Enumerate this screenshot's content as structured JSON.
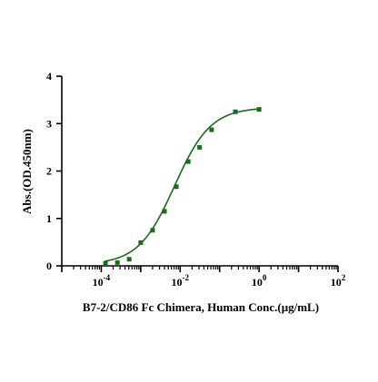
{
  "chart_data": {
    "type": "scatter",
    "xlabel": "B7-2/CD86 Fc Chimera, Human Conc.(μg/mL)",
    "ylabel": "Abs.(OD.450nm)",
    "x_scale": "log",
    "xlim": [
      1e-05,
      100
    ],
    "ylim": [
      0,
      4
    ],
    "x_ticks": [
      {
        "value": 0.0001,
        "base": "10",
        "exp": "-4"
      },
      {
        "value": 0.01,
        "base": "10",
        "exp": "-2"
      },
      {
        "value": 1,
        "base": "10",
        "exp": "0"
      },
      {
        "value": 100,
        "base": "10",
        "exp": "2"
      }
    ],
    "y_ticks": [
      {
        "value": 0,
        "label": "0"
      },
      {
        "value": 1,
        "label": "1"
      },
      {
        "value": 2,
        "label": "2"
      },
      {
        "value": 3,
        "label": "3"
      },
      {
        "value": 4,
        "label": "4"
      }
    ],
    "grid": false,
    "legend": "none",
    "series": [
      {
        "marker": "square",
        "color": "#1a6b1a",
        "points": [
          {
            "x": 0.000128,
            "y": 0.05
          },
          {
            "x": 0.000256,
            "y": 0.07
          },
          {
            "x": 0.00051,
            "y": 0.14
          },
          {
            "x": 0.001,
            "y": 0.49
          },
          {
            "x": 0.002,
            "y": 0.75
          },
          {
            "x": 0.004,
            "y": 1.15
          },
          {
            "x": 0.008,
            "y": 1.67
          },
          {
            "x": 0.016,
            "y": 2.2
          },
          {
            "x": 0.031,
            "y": 2.5
          },
          {
            "x": 0.0625,
            "y": 2.87
          },
          {
            "x": 0.25,
            "y": 3.25
          },
          {
            "x": 1.0,
            "y": 3.3
          }
        ],
        "fit": {
          "type": "4PL",
          "bottom": 0.03,
          "top": 3.34,
          "ec50": 0.0072,
          "hill": 0.95
        }
      }
    ],
    "colors": {
      "axis": "#000000",
      "curve": "#1a6b1a",
      "marker": "#1a6b1a"
    }
  }
}
